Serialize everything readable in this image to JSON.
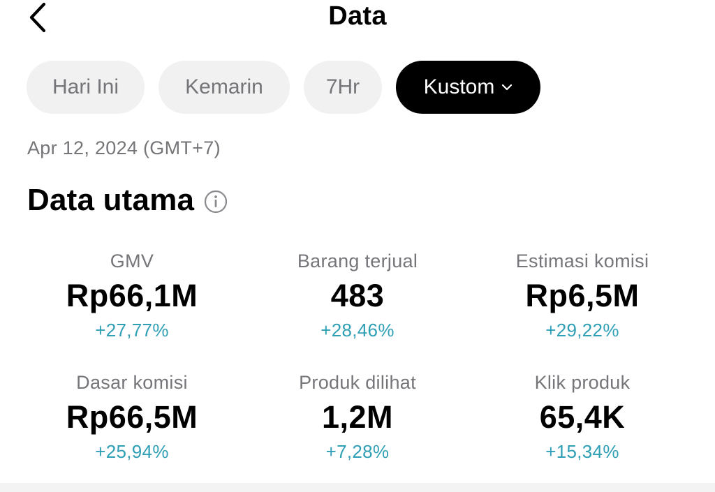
{
  "header": {
    "title": "Data",
    "back_icon": "chevron-left-icon"
  },
  "filters": {
    "chips": [
      {
        "label": "Hari Ini",
        "active": false
      },
      {
        "label": "Kemarin",
        "active": false
      },
      {
        "label": "7Hr",
        "active": false
      },
      {
        "label": "Kustom",
        "active": true
      }
    ],
    "dropdown_icon": "chevron-down-icon"
  },
  "date_label": "Apr 12, 2024 (GMT+7)",
  "section": {
    "title": "Data utama",
    "info_icon": "info-icon"
  },
  "metrics": [
    {
      "label": "GMV",
      "value": "Rp66,1M",
      "delta": "+27,77%"
    },
    {
      "label": "Barang terjual",
      "value": "483",
      "delta": "+28,46%"
    },
    {
      "label": "Estimasi komisi",
      "value": "Rp6,5M",
      "delta": "+29,22%"
    },
    {
      "label": "Dasar komisi",
      "value": "Rp66,5M",
      "delta": "+25,94%"
    },
    {
      "label": "Produk dilihat",
      "value": "1,2M",
      "delta": "+7,28%"
    },
    {
      "label": "Klik produk",
      "value": "65,4K",
      "delta": "+15,34%"
    }
  ],
  "colors": {
    "accent_delta": "#2f9fb5",
    "chip_bg": "#f1f1f2",
    "chip_active_bg": "#000000",
    "muted_text": "#757579"
  }
}
